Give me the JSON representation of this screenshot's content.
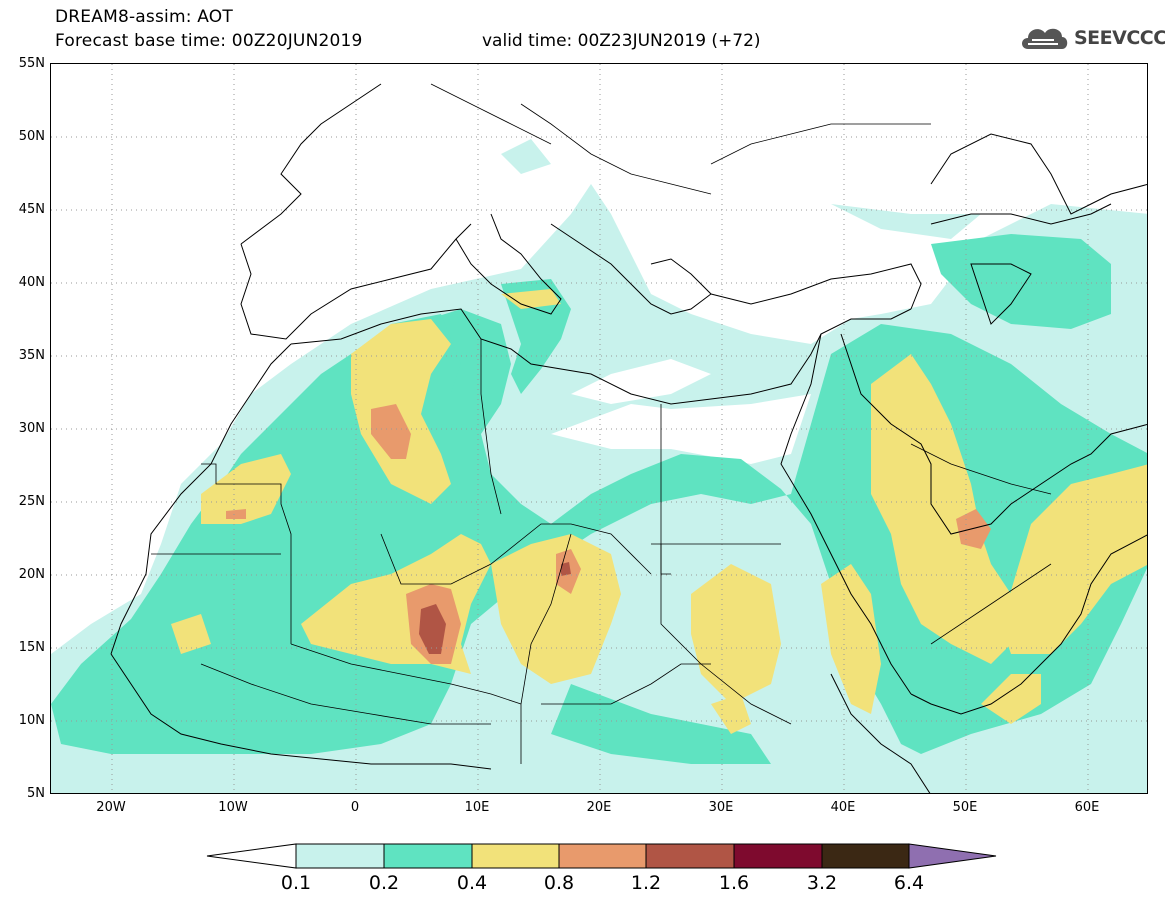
{
  "title": {
    "line1": "DREAM8-assim: AOT",
    "line2_base": "Forecast base time: 00Z20JUN2019",
    "line2_valid": "valid time: 00Z23JUN2019 (+72)"
  },
  "logo": {
    "text": "SEEVCCC",
    "icon": "cloud-icon"
  },
  "map": {
    "lat_labels": [
      "55N",
      "50N",
      "45N",
      "40N",
      "35N",
      "30N",
      "25N",
      "20N",
      "15N",
      "10N",
      "5N"
    ],
    "lon_labels": [
      "20W",
      "10W",
      "0",
      "10E",
      "20E",
      "30E",
      "40E",
      "50E",
      "60E"
    ],
    "extent": {
      "lon_min": -25,
      "lon_max": 65,
      "lat_min": 5,
      "lat_max": 55
    }
  },
  "legend": {
    "levels": [
      "0.1",
      "0.2",
      "0.4",
      "0.8",
      "1.2",
      "1.6",
      "3.2",
      "6.4"
    ],
    "colors": [
      "#ffffff",
      "#c8f2ec",
      "#5fe3c1",
      "#f2e27a",
      "#e89a6c",
      "#b05545",
      "#7e0a2e",
      "#3b2814",
      "#8f6fb0"
    ]
  }
}
